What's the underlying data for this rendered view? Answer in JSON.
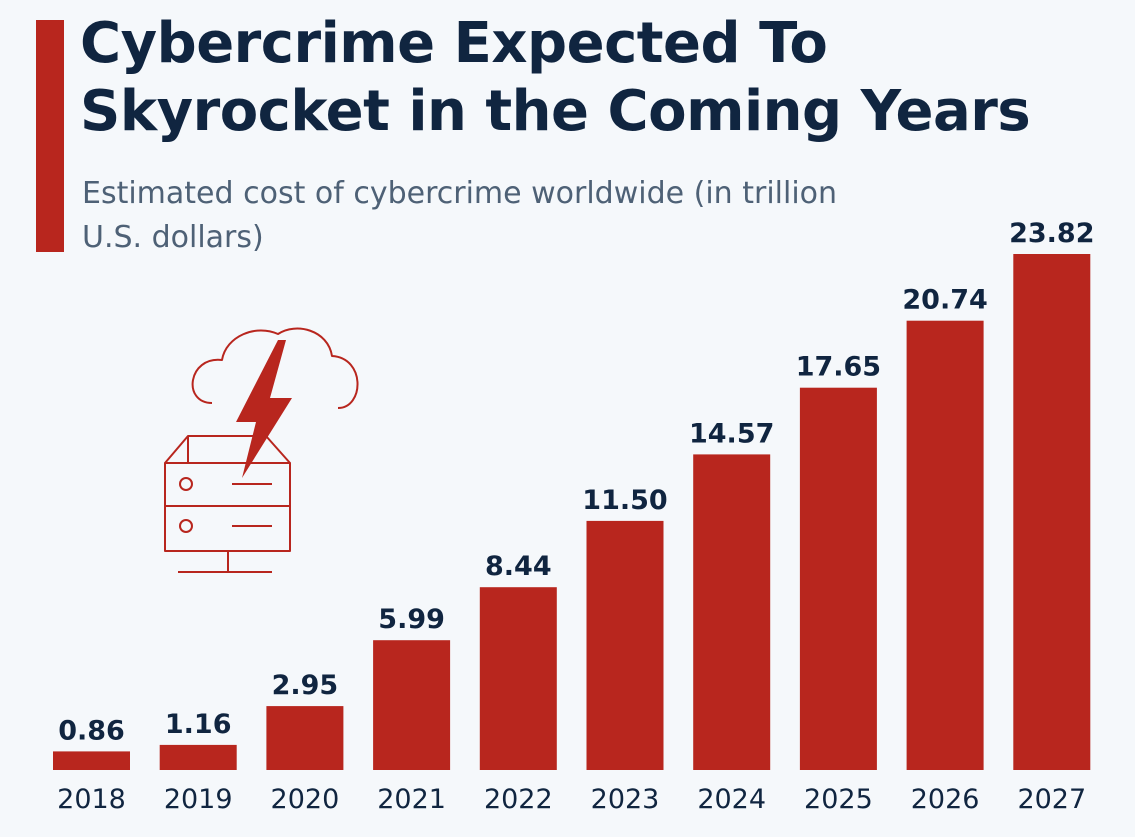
{
  "header": {
    "title": "Cybercrime Expected To Skyrocket in the Coming Years",
    "subtitle": "Estimated cost of cybercrime worldwide (in trillion U.S. dollars)"
  },
  "colors": {
    "bar": "#b8261e",
    "title": "#102540",
    "subtitle": "#4e6176",
    "label": "#102540",
    "background": "#f5f8fb"
  },
  "illustration": {
    "icon": "cloud-lightning-server-icon"
  },
  "chart_data": {
    "type": "bar",
    "title": "Cybercrime Expected To Skyrocket in the Coming Years",
    "subtitle": "Estimated cost of cybercrime worldwide (in trillion U.S. dollars)",
    "xlabel": "",
    "ylabel": "",
    "categories": [
      "2018",
      "2019",
      "2020",
      "2021",
      "2022",
      "2023",
      "2024",
      "2025",
      "2026",
      "2027"
    ],
    "values": [
      0.86,
      1.16,
      2.95,
      5.99,
      8.44,
      11.5,
      14.57,
      17.65,
      20.74,
      23.82
    ],
    "value_labels": [
      "0.86",
      "1.16",
      "2.95",
      "5.99",
      "8.44",
      "11.50",
      "14.57",
      "17.65",
      "20.74",
      "23.82"
    ],
    "ylim": [
      0,
      23.82
    ],
    "grid": false,
    "legend": "none"
  }
}
